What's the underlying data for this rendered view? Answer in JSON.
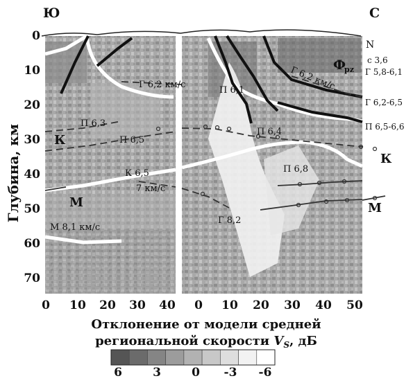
{
  "directions": {
    "south": "Ю",
    "north": "С"
  },
  "y_axis": {
    "label": "Глубина, км",
    "ticks": [
      "0",
      "10",
      "20",
      "30",
      "40",
      "50",
      "60",
      "70"
    ]
  },
  "x_axis_left": {
    "ticks": [
      "0",
      "10",
      "20",
      "30",
      "40"
    ]
  },
  "x_axis_right": {
    "ticks": [
      "0",
      "10",
      "20",
      "30",
      "40",
      "50"
    ]
  },
  "labels": {
    "n": "N",
    "c36": "с 3,6",
    "phi": "Ф",
    "pz": "pz",
    "g58": "Г 5,8-6,1",
    "g62right": "Г 6,2 км/с",
    "g62left": "Г 6,2 км/с",
    "p61": "П 6,1",
    "g6265": "Г 6,2-6,5",
    "p63": "П 6,3",
    "p65": "П 6,5",
    "p64": "П 6,4",
    "p6566": "П 6,5-6,6",
    "k_left": "К",
    "k_right": "К",
    "k65": "К 6,5",
    "p68": "П 6,8",
    "seven": "7 км/с",
    "m_left": "М",
    "m_right": "М",
    "g82": "Г 8,2",
    "m81": "М 8,1 км/с"
  },
  "caption": {
    "line1": "Отклонение от модели средней",
    "line2_prefix": "региональной скорости ",
    "line2_var": "V",
    "line2_sub": "S",
    "line2_suffix": ", дБ"
  },
  "legend": {
    "ticks": [
      "6",
      "3",
      "0",
      "-3",
      "-6"
    ],
    "colors": [
      "#555555",
      "#6b6b6b",
      "#858585",
      "#9c9c9c",
      "#b2b2b2",
      "#c8c8c8",
      "#dedede",
      "#f2f2f2",
      "#ffffff"
    ]
  }
}
